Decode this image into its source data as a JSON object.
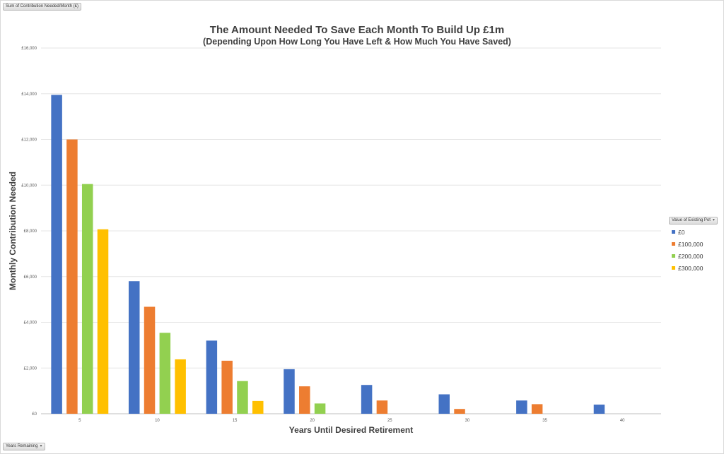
{
  "fields": {
    "data_field": "Sum of Contribution Needed/Month (£)",
    "axis_field": "Years Remaining",
    "legend_field": "Value of Existing Pot"
  },
  "icons": {
    "dropdown": "dropdown-arrow-icon"
  },
  "chart_data": {
    "type": "bar",
    "title": "The Amount Needed To Save Each Month To Build Up £1m",
    "subtitle": "(Depending Upon How Long You Have Left & How Much You Have Saved)",
    "xlabel": "Years Until Desired Retirement",
    "ylabel": "Monthly Contribution Needed",
    "categories": [
      "5",
      "10",
      "15",
      "20",
      "25",
      "30",
      "35",
      "40"
    ],
    "ylim": [
      0,
      16000
    ],
    "yticks": [
      0,
      2000,
      4000,
      6000,
      8000,
      10000,
      12000,
      14000,
      16000
    ],
    "ytick_labels": [
      "£0",
      "£2,000",
      "£4,000",
      "£6,000",
      "£8,000",
      "£10,000",
      "£12,000",
      "£14,000",
      "£16,000"
    ],
    "grid": true,
    "legend_position": "right",
    "series": [
      {
        "name": "£0",
        "color": "#4472c4",
        "values": [
          13950,
          5800,
          3200,
          1950,
          1260,
          850,
          580,
          400
        ]
      },
      {
        "name": "£100,000",
        "color": "#ed7d31",
        "values": [
          12000,
          4680,
          2320,
          1200,
          580,
          210,
          420,
          null
        ]
      },
      {
        "name": "£200,000",
        "color": "#92d050",
        "values": [
          10050,
          3540,
          1430,
          450,
          null,
          null,
          null,
          null
        ]
      },
      {
        "name": "£300,000",
        "color": "#ffc000",
        "values": [
          8070,
          2380,
          560,
          null,
          null,
          null,
          null,
          null
        ]
      }
    ]
  }
}
